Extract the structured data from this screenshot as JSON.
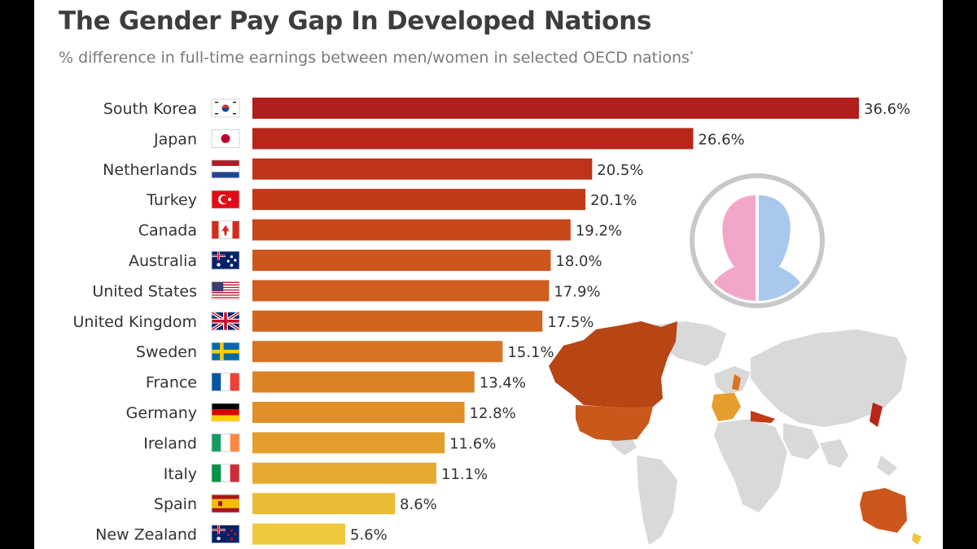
{
  "title": "The Gender Pay Gap In Developed Nations",
  "subtitle": "% difference in full-time earnings between men/women in selected OECD nations",
  "subtitle_mark": "*",
  "chart_data": {
    "type": "bar",
    "orientation": "horizontal",
    "title": "The Gender Pay Gap In Developed Nations",
    "subtitle": "% difference in full-time earnings between men/women in selected OECD nations",
    "categories": [
      "South Korea",
      "Japan",
      "Netherlands",
      "Turkey",
      "Canada",
      "Australia",
      "United States",
      "United Kingdom",
      "Sweden",
      "France",
      "Germany",
      "Ireland",
      "Italy",
      "Spain",
      "New Zealand"
    ],
    "values": [
      36.6,
      26.6,
      20.5,
      20.1,
      19.2,
      18.0,
      17.9,
      17.5,
      15.1,
      13.4,
      12.8,
      11.6,
      11.1,
      8.6,
      5.6
    ],
    "value_labels": [
      "36.6%",
      "26.6%",
      "20.5%",
      "20.1%",
      "19.2%",
      "18.0%",
      "17.9%",
      "17.5%",
      "15.1%",
      "13.4%",
      "12.8%",
      "11.6%",
      "11.1%",
      "8.6%",
      "5.6%"
    ],
    "unit": "%",
    "xlim": [
      0,
      36.6
    ],
    "bar_colors": [
      "#b01f1b",
      "#b8261a",
      "#bf3319",
      "#c33a19",
      "#c8471a",
      "#cc561c",
      "#cf5d1d",
      "#d2651e",
      "#d77322",
      "#dc8226",
      "#df8e28",
      "#e39e2c",
      "#e7aa30",
      "#ebbb35",
      "#eec93b"
    ],
    "flags": [
      "south-korea-flag",
      "japan-flag",
      "netherlands-flag",
      "turkey-flag",
      "canada-flag",
      "australia-flag",
      "united-states-flag",
      "united-kingdom-flag",
      "sweden-flag",
      "france-flag",
      "germany-flag",
      "ireland-flag",
      "italy-flag",
      "spain-flag",
      "new-zealand-flag"
    ],
    "grid": false,
    "legend": "none"
  },
  "illustration": {
    "badge": "gender-split-head-icon",
    "map": "world-map-highlighting-countries",
    "colors": {
      "female": "#f2a7c8",
      "male": "#a9c8ee",
      "map_base": "#d9d9d9"
    }
  }
}
